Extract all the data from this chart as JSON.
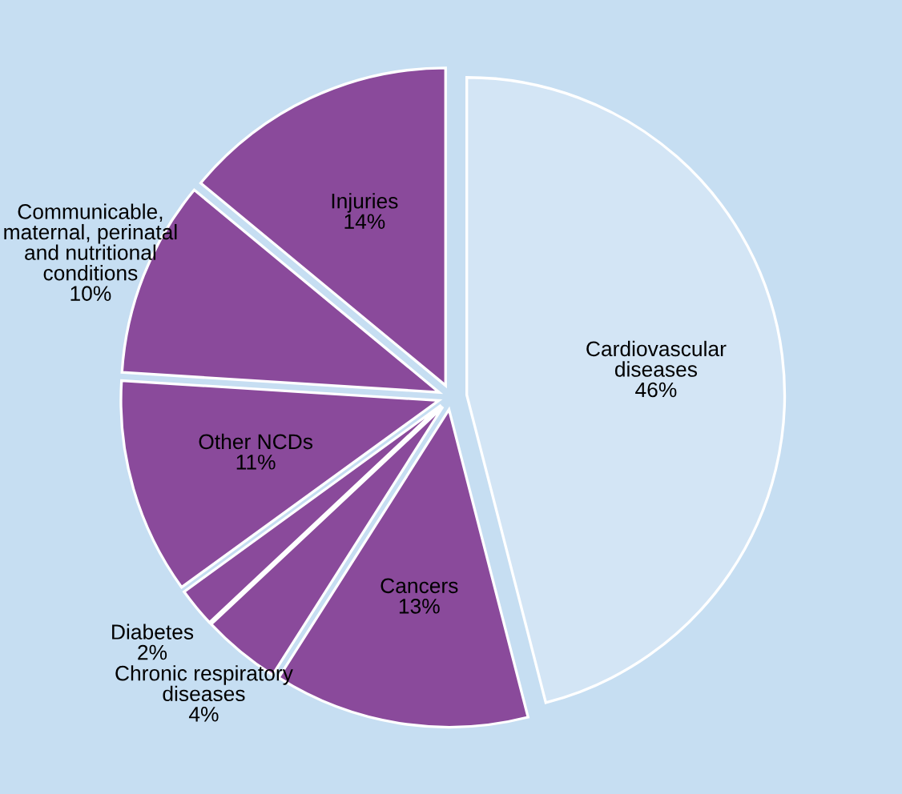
{
  "chart_data": {
    "type": "pie",
    "categories": [
      "Cardiovascular\ndiseases",
      "Cancers",
      "Chronic respiratory\ndiseases",
      "Diabetes",
      "Other NCDs",
      "Communicable,\nmaternal, perinatal\nand nutritional\nconditions",
      "Injuries"
    ],
    "values": [
      46,
      13,
      4,
      2,
      11,
      10,
      14
    ],
    "colors": [
      "#d3e5f5",
      "#8a4a9b",
      "#8a4a9b",
      "#8a4a9b",
      "#8a4a9b",
      "#8a4a9b",
      "#8a4a9b"
    ],
    "value_labels": [
      "46%",
      "13%",
      "4%",
      "2%",
      "11%",
      "10%",
      "14%"
    ],
    "legend": false
  }
}
